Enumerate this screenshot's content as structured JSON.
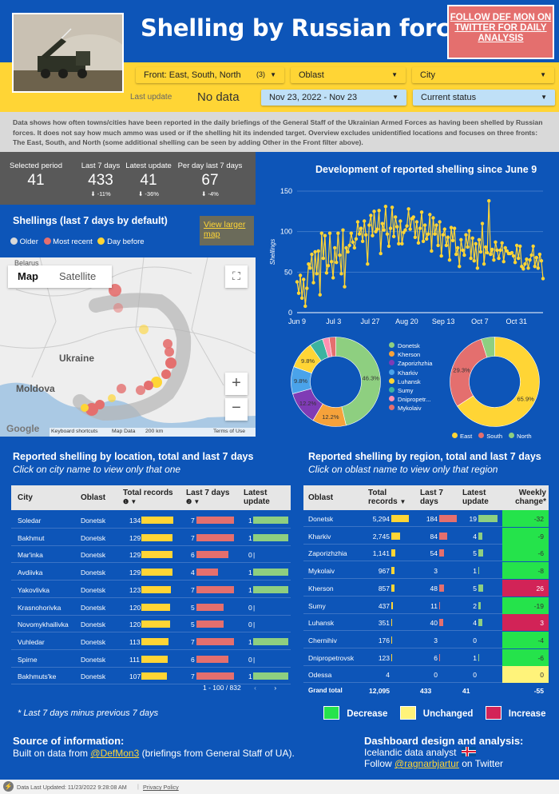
{
  "header": {
    "title": "Shelling by Russian forces",
    "twitter_link": "FOLLOW DEF MON ON TWITTER FOR DAILY ANALYSIS"
  },
  "filters": {
    "front_label": "Front:",
    "front_value": "East, South, North",
    "front_count": "(3)",
    "oblast": "Oblast",
    "city": "City",
    "last_update_label": "Last update",
    "last_update_value": "No data",
    "date_range": "Nov 23, 2022 - Nov 23",
    "status": "Current status"
  },
  "description": "Data shows how often towns/cities have been reported in the daily briefings of the General Staff of the Ukrainian Armed Forces as having been shelled by Russian forces. It does not say how much ammo was used or if the shelling hit its indended target. Overview excludes unidentified locations and focuses on three fronts: The East, South, and North (some additional shelling can be seen by adding Other in the Front filter above).",
  "kpis": [
    {
      "label": "Selected period",
      "value": "41",
      "delta": ""
    },
    {
      "label": "Last 7 days",
      "value": "433",
      "delta": "⬇ -11%"
    },
    {
      "label": "Latest update",
      "value": "41",
      "delta": "⬇ -36%"
    },
    {
      "label": "Per day last 7 days",
      "value": "67",
      "delta": "⬇ -4%"
    }
  ],
  "map_section": {
    "title": "Shellings (last 7 days by default)",
    "legend": [
      "Older",
      "Most recent",
      "Day before"
    ],
    "view_larger": "View larger map",
    "tab_map": "Map",
    "tab_satellite": "Satellite",
    "labels": {
      "belarus": "Belarus",
      "ukraine": "Ukraine",
      "moldova": "Moldova"
    },
    "attrib": [
      "Keyboard shortcuts",
      "Map Data",
      "200 km",
      "Terms of Use"
    ],
    "google": "Google"
  },
  "colors": {
    "older": "#d9d9d9",
    "recent": "#e46f6e",
    "day_before": "#ffd535",
    "green": "#8ecf80",
    "yellow": "#ffd535",
    "pink": "#e46f6e",
    "blue": "#4aa3ea",
    "purple": "#7f3bb5",
    "orange": "#f6a23a",
    "teal": "#3db3a0",
    "crimson": "#d22357"
  },
  "chart_data": [
    {
      "type": "line",
      "title": "Development of reported shelling since June 9",
      "ylabel": "Shellings",
      "ylim": [
        0,
        150
      ],
      "yticks": [
        0,
        50,
        100,
        150
      ],
      "xticks": [
        "Jun 9",
        "Jul 3",
        "Jul 27",
        "Aug 20",
        "Sep 13",
        "Oct 7",
        "Oct 31"
      ],
      "values": [
        38,
        24,
        46,
        18,
        41,
        8,
        30,
        60,
        55,
        72,
        37,
        75,
        48,
        76,
        22,
        98,
        67,
        95,
        49,
        58,
        98,
        63,
        43,
        80,
        62,
        98,
        71,
        48,
        102,
        32,
        80,
        75,
        83,
        98,
        87,
        80,
        91,
        112,
        97,
        104,
        88,
        113,
        96,
        60,
        108,
        120,
        95,
        125,
        100,
        103,
        126,
        73,
        110,
        102,
        131,
        97,
        82,
        104,
        130,
        94,
        118,
        106,
        85,
        113,
        85,
        99,
        102,
        107,
        128,
        103,
        116,
        118,
        93,
        112,
        86,
        104,
        124,
        88,
        108,
        91,
        97,
        121,
        76,
        117,
        97,
        108,
        83,
        112,
        70,
        96,
        103,
        83,
        93,
        65,
        105,
        89,
        104,
        72,
        80,
        57,
        90,
        77,
        71,
        96,
        81,
        101,
        67,
        92,
        64,
        85,
        55,
        90,
        75,
        110,
        60,
        81,
        74,
        138,
        72,
        78,
        65,
        87,
        77,
        67,
        77,
        86,
        63,
        80,
        76,
        73,
        73,
        74,
        70,
        62,
        83,
        67,
        82,
        57,
        54,
        60,
        66,
        55,
        65,
        71,
        82,
        57,
        68,
        55,
        72,
        64,
        42
      ]
    },
    {
      "type": "pie",
      "variant": "donut",
      "title": "",
      "series": [
        {
          "name": "Donetsk",
          "value": 46.3
        },
        {
          "name": "Kherson",
          "value": 12.2
        },
        {
          "name": "Zaporizhzhia",
          "value": 12.2
        },
        {
          "name": "Kharkiv",
          "value": 9.8
        },
        {
          "name": "Luhansk",
          "value": 9.8
        },
        {
          "name": "Sumy",
          "value": 4.9
        },
        {
          "name": "Dnipropetr...",
          "value": 2.4
        },
        {
          "name": "Mykolaiv",
          "value": 2.4
        }
      ],
      "data_labels": [
        "46.3%",
        "12.2%",
        "12.2%",
        "9.8%",
        "9.8%"
      ]
    },
    {
      "type": "pie",
      "variant": "donut",
      "title": "",
      "series": [
        {
          "name": "East",
          "value": 65.9
        },
        {
          "name": "South",
          "value": 29.3
        },
        {
          "name": "North",
          "value": 4.9
        }
      ],
      "data_labels": [
        "65.9%",
        "29.3%"
      ]
    }
  ],
  "city_section": {
    "title": "Reported shelling by location, total and last 7 days",
    "subtitle": "Click on city name to view only that one",
    "columns": [
      "City",
      "Oblast",
      "Total records",
      "Last 7 days",
      "Latest update"
    ],
    "col_marks": [
      "❶ ▼",
      "❷ ▼",
      ""
    ],
    "rows": [
      {
        "city": "Soledar",
        "oblast": "Donetsk",
        "total": "134",
        "last7": "7",
        "latest": "1",
        "t": 134,
        "l": 7,
        "u": 1
      },
      {
        "city": "Bakhmut",
        "oblast": "Donetsk",
        "total": "129",
        "last7": "7",
        "latest": "1",
        "t": 129,
        "l": 7,
        "u": 1
      },
      {
        "city": "Mar'inka",
        "oblast": "Donetsk",
        "total": "129",
        "last7": "6",
        "latest": "0",
        "t": 129,
        "l": 6,
        "u": 0
      },
      {
        "city": "Avdiivka",
        "oblast": "Donetsk",
        "total": "129",
        "last7": "4",
        "latest": "1",
        "t": 129,
        "l": 4,
        "u": 1
      },
      {
        "city": "Yakovlivka",
        "oblast": "Donetsk",
        "total": "123",
        "last7": "7",
        "latest": "1",
        "t": 123,
        "l": 7,
        "u": 1
      },
      {
        "city": "Krasnohorivka",
        "oblast": "Donetsk",
        "total": "120",
        "last7": "5",
        "latest": "0",
        "t": 120,
        "l": 5,
        "u": 0
      },
      {
        "city": "Novomykhailivka",
        "oblast": "Donetsk",
        "total": "120",
        "last7": "5",
        "latest": "0",
        "t": 120,
        "l": 5,
        "u": 0
      },
      {
        "city": "Vuhledar",
        "oblast": "Donetsk",
        "total": "113",
        "last7": "7",
        "latest": "1",
        "t": 113,
        "l": 7,
        "u": 1
      },
      {
        "city": "Spirne",
        "oblast": "Donetsk",
        "total": "111",
        "last7": "6",
        "latest": "0",
        "t": 111,
        "l": 6,
        "u": 0
      },
      {
        "city": "Bakhmuts'ke",
        "oblast": "Donetsk",
        "total": "107",
        "last7": "7",
        "latest": "1",
        "t": 107,
        "l": 7,
        "u": 1
      }
    ],
    "pager": "1 - 100 / 832"
  },
  "region_section": {
    "title": "Reported shelling by region, total and last 7 days",
    "subtitle": "Click on oblast name to view only that region",
    "columns": [
      "Oblast",
      "Total records",
      "Last 7 days",
      "Latest update",
      "Weekly change*"
    ],
    "col_marks": [
      "▼"
    ],
    "rows": [
      {
        "oblast": "Donetsk",
        "total": "5,294",
        "last7": "184",
        "latest": "19",
        "change": "-32",
        "t": 5294,
        "l": 184,
        "u": 19,
        "c": "green"
      },
      {
        "oblast": "Kharkiv",
        "total": "2,745",
        "last7": "84",
        "latest": "4",
        "change": "-9",
        "t": 2745,
        "l": 84,
        "u": 4,
        "c": "green"
      },
      {
        "oblast": "Zaporizhzhia",
        "total": "1,141",
        "last7": "54",
        "latest": "5",
        "change": "-6",
        "t": 1141,
        "l": 54,
        "u": 5,
        "c": "green"
      },
      {
        "oblast": "Mykolaiv",
        "total": "967",
        "last7": "3",
        "latest": "1",
        "change": "-8",
        "t": 967,
        "l": 3,
        "u": 1,
        "c": "green"
      },
      {
        "oblast": "Kherson",
        "total": "857",
        "last7": "48",
        "latest": "5",
        "change": "26",
        "t": 857,
        "l": 48,
        "u": 5,
        "c": "red"
      },
      {
        "oblast": "Sumy",
        "total": "437",
        "last7": "11",
        "latest": "2",
        "change": "-19",
        "t": 437,
        "l": 11,
        "u": 2,
        "c": "green"
      },
      {
        "oblast": "Luhansk",
        "total": "351",
        "last7": "40",
        "latest": "4",
        "change": "3",
        "t": 351,
        "l": 40,
        "u": 4,
        "c": "red"
      },
      {
        "oblast": "Chernihiv",
        "total": "176",
        "last7": "3",
        "latest": "0",
        "change": "-4",
        "t": 176,
        "l": 3,
        "u": 0,
        "c": "green"
      },
      {
        "oblast": "Dnipropetrovsk",
        "total": "123",
        "last7": "6",
        "latest": "1",
        "change": "-6",
        "t": 123,
        "l": 6,
        "u": 1,
        "c": "green"
      },
      {
        "oblast": "Odessa",
        "total": "4",
        "last7": "0",
        "latest": "0",
        "change": "0",
        "t": 4,
        "l": 0,
        "u": 0,
        "c": "yellow"
      }
    ],
    "grand_total": {
      "label": "Grand total",
      "total": "12,095",
      "last7": "433",
      "latest": "41",
      "change": "-55"
    }
  },
  "footnote": "* Last 7 days minus previous 7 days",
  "change_legend": [
    "Decrease",
    "Unchanged",
    "Increase"
  ],
  "source": {
    "title": "Source of information:",
    "text_pre": "Built on data from ",
    "link": "@DefMon3",
    "text_post": " (briefings from General Staff of UA)."
  },
  "design": {
    "title": "Dashboard design and analysis:",
    "line1": "Icelandic data analyst",
    "line2_pre": "Follow ",
    "link": "@ragnarbjartur",
    "line2_post": " on Twitter"
  },
  "footer": {
    "updated": "Data Last Updated: 11/23/2022 9:28:08 AM",
    "privacy": "Privacy Policy"
  }
}
